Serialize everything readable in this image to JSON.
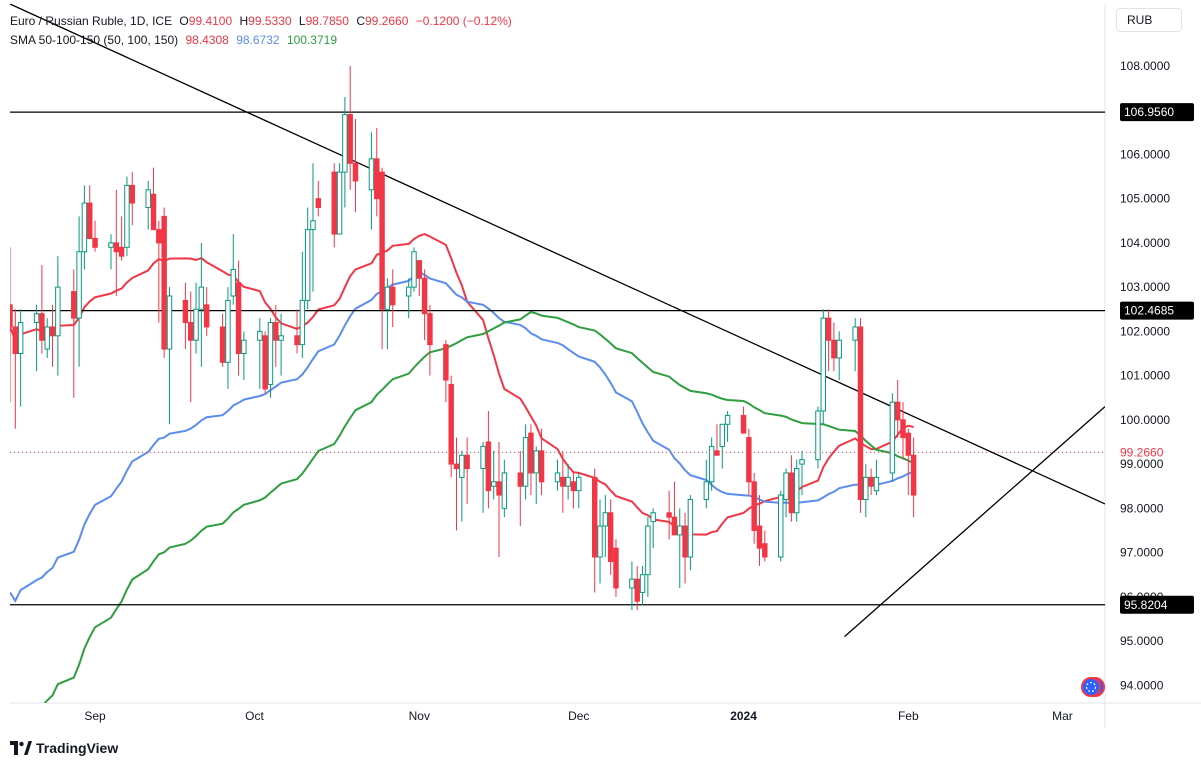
{
  "header": {
    "symbol": "Euro / Russian Ruble, 1D, ICE",
    "open_label": "O",
    "open": "99.4100",
    "high_label": "H",
    "high": "99.5330",
    "low_label": "L",
    "low": "98.7850",
    "close_label": "C",
    "close": "99.2660",
    "change": "−0.1200 (−0.12%)",
    "sma_label": "SMA 50-100-150 (50, 100, 150)",
    "sma50": "98.4308",
    "sma100": "98.6732",
    "sma150": "100.3719"
  },
  "currency": "RUB",
  "branding": "TradingView",
  "colors": {
    "up": "#089981",
    "down": "#f23645",
    "sma50": "#f23645",
    "sma100": "#5b8def",
    "sma150": "#2e9e3f",
    "lines": "#000000",
    "price_line": "#f23645"
  },
  "chart_data": {
    "type": "candlestick",
    "y_range": [
      93.6,
      109.4
    ],
    "y_ticks": [
      {
        "value": 94,
        "label": "94.0000"
      },
      {
        "value": 95,
        "label": "95.0000"
      },
      {
        "value": 96,
        "label": "96.0000"
      },
      {
        "value": 97,
        "label": "97.0000"
      },
      {
        "value": 98,
        "label": "98.0000"
      },
      {
        "value": 99,
        "label": "99.0000"
      },
      {
        "value": 100,
        "label": "100.0000"
      },
      {
        "value": 101,
        "label": "101.0000"
      },
      {
        "value": 102,
        "label": "102.0000"
      },
      {
        "value": 103,
        "label": "103.0000"
      },
      {
        "value": 104,
        "label": "104.0000"
      },
      {
        "value": 105,
        "label": "105.0000"
      },
      {
        "value": 106,
        "label": "106.0000"
      },
      {
        "value": 107,
        "label": "107.0000"
      },
      {
        "value": 108,
        "label": "108.0000"
      }
    ],
    "x_ticks": [
      {
        "date": "2023-09-01",
        "label": "Sep"
      },
      {
        "date": "2023-10-01",
        "label": "Oct"
      },
      {
        "date": "2023-11-01",
        "label": "Nov"
      },
      {
        "date": "2023-12-01",
        "label": "Dec"
      },
      {
        "date": "2024-01-01",
        "label": "2024"
      },
      {
        "date": "2024-02-01",
        "label": "Feb"
      },
      {
        "date": "2024-03-01",
        "label": "Mar"
      }
    ],
    "date_range": [
      "2023-08-16",
      "2024-03-09"
    ],
    "horizontal_levels": [
      {
        "value": 106.956,
        "label": "106.9560"
      },
      {
        "value": 102.4685,
        "label": "102.4685"
      },
      {
        "value": 95.8204,
        "label": "95.8204"
      }
    ],
    "current_price": {
      "value": 99.266,
      "label": "99.2660"
    },
    "trendlines": [
      {
        "from": [
          "2023-08-16",
          109.4
        ],
        "to": [
          "2024-03-09",
          98.1
        ]
      },
      {
        "from": [
          "2024-01-20",
          95.1
        ],
        "to": [
          "2024-03-09",
          100.3
        ]
      }
    ],
    "candles": [
      {
        "date": "2023-08-16",
        "o": 102.6,
        "h": 103.9,
        "l": 100.4,
        "c": 102.1
      },
      {
        "date": "2023-08-17",
        "o": 102.1,
        "h": 102.5,
        "l": 99.8,
        "c": 101.5
      },
      {
        "date": "2023-08-18",
        "o": 101.5,
        "h": 102.5,
        "l": 100.3,
        "c": 102.2
      },
      {
        "date": "2023-08-21",
        "o": 102.2,
        "h": 102.6,
        "l": 101.1,
        "c": 102.4
      },
      {
        "date": "2023-08-22",
        "o": 102.4,
        "h": 103.5,
        "l": 101.5,
        "c": 101.8
      },
      {
        "date": "2023-08-23",
        "o": 101.6,
        "h": 102.3,
        "l": 101.4,
        "c": 102.1
      },
      {
        "date": "2023-08-24",
        "o": 102.1,
        "h": 102.6,
        "l": 101.2,
        "c": 101.9
      },
      {
        "date": "2023-08-25",
        "o": 101.9,
        "h": 103.7,
        "l": 101.0,
        "c": 103.0
      },
      {
        "date": "2023-08-28",
        "o": 102.9,
        "h": 103.4,
        "l": 100.5,
        "c": 102.3
      },
      {
        "date": "2023-08-29",
        "o": 102.3,
        "h": 104.6,
        "l": 101.2,
        "c": 103.8
      },
      {
        "date": "2023-08-30",
        "o": 103.8,
        "h": 105.3,
        "l": 103.4,
        "c": 104.9
      },
      {
        "date": "2023-08-31",
        "o": 104.9,
        "h": 105.3,
        "l": 104.2,
        "c": 104.1
      },
      {
        "date": "2023-09-01",
        "o": 104.1,
        "h": 104.5,
        "l": 103.8,
        "c": 103.9
      },
      {
        "date": "2023-09-04",
        "o": 103.9,
        "h": 104.2,
        "l": 103.4,
        "c": 104.0
      },
      {
        "date": "2023-09-05",
        "o": 104.0,
        "h": 105.2,
        "l": 102.8,
        "c": 103.8
      },
      {
        "date": "2023-09-06",
        "o": 103.9,
        "h": 104.6,
        "l": 103.6,
        "c": 103.7
      },
      {
        "date": "2023-09-07",
        "o": 103.9,
        "h": 105.5,
        "l": 103.7,
        "c": 105.3
      },
      {
        "date": "2023-09-08",
        "o": 105.3,
        "h": 105.6,
        "l": 104.4,
        "c": 104.9
      },
      {
        "date": "2023-09-11",
        "o": 104.8,
        "h": 105.4,
        "l": 104.3,
        "c": 105.2
      },
      {
        "date": "2023-09-12",
        "o": 105.1,
        "h": 105.7,
        "l": 104.3,
        "c": 104.3
      },
      {
        "date": "2023-09-13",
        "o": 104.3,
        "h": 104.5,
        "l": 102.2,
        "c": 104.0
      },
      {
        "date": "2023-09-14",
        "o": 104.6,
        "h": 104.8,
        "l": 101.4,
        "c": 101.6
      },
      {
        "date": "2023-09-15",
        "o": 101.6,
        "h": 103.0,
        "l": 99.9,
        "c": 102.8
      },
      {
        "date": "2023-09-18",
        "o": 102.7,
        "h": 103.1,
        "l": 101.6,
        "c": 102.2
      },
      {
        "date": "2023-09-19",
        "o": 102.2,
        "h": 102.9,
        "l": 100.4,
        "c": 101.8
      },
      {
        "date": "2023-09-20",
        "o": 101.8,
        "h": 103.1,
        "l": 101.5,
        "c": 102.5
      },
      {
        "date": "2023-09-21",
        "o": 102.5,
        "h": 104.0,
        "l": 101.2,
        "c": 103.0
      },
      {
        "date": "2023-09-22",
        "o": 102.6,
        "h": 103.0,
        "l": 101.9,
        "c": 102.1
      },
      {
        "date": "2023-09-25",
        "o": 102.1,
        "h": 102.4,
        "l": 101.2,
        "c": 101.3
      },
      {
        "date": "2023-09-26",
        "o": 101.3,
        "h": 103.0,
        "l": 100.7,
        "c": 102.7
      },
      {
        "date": "2023-09-27",
        "o": 102.8,
        "h": 104.2,
        "l": 102.6,
        "c": 103.4
      },
      {
        "date": "2023-09-28",
        "o": 103.1,
        "h": 103.6,
        "l": 101.0,
        "c": 101.5
      },
      {
        "date": "2023-09-29",
        "o": 101.5,
        "h": 102.0,
        "l": 100.9,
        "c": 101.8
      },
      {
        "date": "2023-10-02",
        "o": 101.8,
        "h": 102.3,
        "l": 100.7,
        "c": 102.0
      },
      {
        "date": "2023-10-03",
        "o": 101.9,
        "h": 102.0,
        "l": 100.6,
        "c": 100.7
      },
      {
        "date": "2023-10-04",
        "o": 100.8,
        "h": 102.3,
        "l": 100.5,
        "c": 102.2
      },
      {
        "date": "2023-10-05",
        "o": 102.2,
        "h": 102.6,
        "l": 101.2,
        "c": 101.8
      },
      {
        "date": "2023-10-06",
        "o": 101.8,
        "h": 102.4,
        "l": 101.0,
        "c": 101.9
      },
      {
        "date": "2023-10-09",
        "o": 101.9,
        "h": 102.5,
        "l": 101.5,
        "c": 101.7
      },
      {
        "date": "2023-10-10",
        "o": 101.7,
        "h": 103.8,
        "l": 101.4,
        "c": 102.7
      },
      {
        "date": "2023-10-11",
        "o": 102.7,
        "h": 104.8,
        "l": 102.5,
        "c": 104.3
      },
      {
        "date": "2023-10-12",
        "o": 104.3,
        "h": 105.8,
        "l": 102.9,
        "c": 104.5
      },
      {
        "date": "2023-10-13",
        "o": 105.0,
        "h": 105.4,
        "l": 104.6,
        "c": 104.8
      },
      {
        "date": "2023-10-16",
        "o": 105.6,
        "h": 105.8,
        "l": 103.9,
        "c": 104.2
      },
      {
        "date": "2023-10-17",
        "o": 104.2,
        "h": 105.8,
        "l": 104.2,
        "c": 105.6
      },
      {
        "date": "2023-10-18",
        "o": 105.6,
        "h": 107.3,
        "l": 104.8,
        "c": 106.9
      },
      {
        "date": "2023-10-19",
        "o": 106.9,
        "h": 108.0,
        "l": 105.2,
        "c": 105.8
      },
      {
        "date": "2023-10-20",
        "o": 105.8,
        "h": 106.8,
        "l": 104.7,
        "c": 105.4
      },
      {
        "date": "2023-10-23",
        "o": 105.2,
        "h": 106.5,
        "l": 104.3,
        "c": 105.9
      },
      {
        "date": "2023-10-24",
        "o": 105.9,
        "h": 106.6,
        "l": 104.6,
        "c": 105.0
      },
      {
        "date": "2023-10-25",
        "o": 105.6,
        "h": 105.7,
        "l": 101.6,
        "c": 102.5
      },
      {
        "date": "2023-10-26",
        "o": 102.5,
        "h": 103.2,
        "l": 101.6,
        "c": 103.0
      },
      {
        "date": "2023-10-27",
        "o": 103.0,
        "h": 103.4,
        "l": 102.1,
        "c": 102.6
      },
      {
        "date": "2023-10-30",
        "o": 102.8,
        "h": 103.2,
        "l": 102.3,
        "c": 103.0
      },
      {
        "date": "2023-10-31",
        "o": 103.0,
        "h": 103.9,
        "l": 102.9,
        "c": 103.8
      },
      {
        "date": "2023-11-01",
        "o": 103.6,
        "h": 103.6,
        "l": 102.8,
        "c": 103.2
      },
      {
        "date": "2023-11-02",
        "o": 103.2,
        "h": 103.4,
        "l": 101.8,
        "c": 102.4
      },
      {
        "date": "2023-11-03",
        "o": 102.4,
        "h": 102.6,
        "l": 101.0,
        "c": 101.7
      },
      {
        "date": "2023-11-06",
        "o": 101.7,
        "h": 101.8,
        "l": 100.4,
        "c": 100.9
      },
      {
        "date": "2023-11-07",
        "o": 100.8,
        "h": 101.0,
        "l": 98.7,
        "c": 99.0
      },
      {
        "date": "2023-11-08",
        "o": 99.0,
        "h": 99.6,
        "l": 97.5,
        "c": 98.9
      },
      {
        "date": "2023-11-09",
        "o": 98.7,
        "h": 99.3,
        "l": 97.7,
        "c": 99.2
      },
      {
        "date": "2023-11-10",
        "o": 99.2,
        "h": 99.6,
        "l": 98.1,
        "c": 98.9
      },
      {
        "date": "2023-11-13",
        "o": 98.9,
        "h": 99.5,
        "l": 97.9,
        "c": 99.4
      },
      {
        "date": "2023-11-14",
        "o": 99.5,
        "h": 100.2,
        "l": 98.0,
        "c": 98.4
      },
      {
        "date": "2023-11-15",
        "o": 98.5,
        "h": 99.3,
        "l": 98.2,
        "c": 98.6
      },
      {
        "date": "2023-11-16",
        "o": 98.6,
        "h": 99.5,
        "l": 96.9,
        "c": 98.3
      },
      {
        "date": "2023-11-17",
        "o": 98.0,
        "h": 99.1,
        "l": 97.8,
        "c": 98.8
      },
      {
        "date": "2023-11-20",
        "o": 98.8,
        "h": 99.3,
        "l": 97.6,
        "c": 98.5
      },
      {
        "date": "2023-11-21",
        "o": 98.5,
        "h": 99.9,
        "l": 98.2,
        "c": 99.6
      },
      {
        "date": "2023-11-22",
        "o": 99.7,
        "h": 99.9,
        "l": 98.3,
        "c": 98.8
      },
      {
        "date": "2023-11-23",
        "o": 98.8,
        "h": 99.4,
        "l": 98.1,
        "c": 99.3
      },
      {
        "date": "2023-11-24",
        "o": 99.3,
        "h": 99.8,
        "l": 98.3,
        "c": 98.6
      },
      {
        "date": "2023-11-27",
        "o": 98.6,
        "h": 99.1,
        "l": 98.4,
        "c": 98.8
      },
      {
        "date": "2023-11-28",
        "o": 98.7,
        "h": 99.3,
        "l": 97.9,
        "c": 98.5
      },
      {
        "date": "2023-11-29",
        "o": 98.5,
        "h": 99.0,
        "l": 98.2,
        "c": 98.7
      },
      {
        "date": "2023-11-30",
        "o": 98.6,
        "h": 98.8,
        "l": 98.0,
        "c": 98.4
      },
      {
        "date": "2023-12-01",
        "o": 98.4,
        "h": 98.8,
        "l": 98.0,
        "c": 98.7
      },
      {
        "date": "2023-12-04",
        "o": 98.7,
        "h": 98.9,
        "l": 96.1,
        "c": 96.9
      },
      {
        "date": "2023-12-05",
        "o": 96.9,
        "h": 98.2,
        "l": 96.3,
        "c": 97.6
      },
      {
        "date": "2023-12-06",
        "o": 97.6,
        "h": 98.3,
        "l": 96.9,
        "c": 97.9
      },
      {
        "date": "2023-12-07",
        "o": 97.9,
        "h": 98.2,
        "l": 96.5,
        "c": 96.8
      },
      {
        "date": "2023-12-08",
        "o": 97.1,
        "h": 97.3,
        "l": 96.0,
        "c": 96.2
      },
      {
        "date": "2023-12-11",
        "o": 96.2,
        "h": 96.8,
        "l": 95.7,
        "c": 96.4
      },
      {
        "date": "2023-12-12",
        "o": 96.4,
        "h": 96.7,
        "l": 95.7,
        "c": 95.9
      },
      {
        "date": "2023-12-13",
        "o": 96.1,
        "h": 96.7,
        "l": 95.8,
        "c": 96.5
      },
      {
        "date": "2023-12-14",
        "o": 96.5,
        "h": 97.8,
        "l": 96.0,
        "c": 97.6
      },
      {
        "date": "2023-12-15",
        "o": 97.7,
        "h": 98.0,
        "l": 97.1,
        "c": 97.9
      },
      {
        "date": "2023-12-18",
        "o": 97.9,
        "h": 98.4,
        "l": 97.3,
        "c": 97.8
      },
      {
        "date": "2023-12-19",
        "o": 97.8,
        "h": 98.6,
        "l": 97.4,
        "c": 97.4
      },
      {
        "date": "2023-12-20",
        "o": 97.4,
        "h": 98.0,
        "l": 96.2,
        "c": 97.6
      },
      {
        "date": "2023-12-21",
        "o": 97.6,
        "h": 97.9,
        "l": 96.3,
        "c": 96.9
      },
      {
        "date": "2023-12-22",
        "o": 96.9,
        "h": 98.3,
        "l": 96.6,
        "c": 98.2
      },
      {
        "date": "2023-12-25",
        "o": 98.2,
        "h": 99.1,
        "l": 98.0,
        "c": 98.6
      },
      {
        "date": "2023-12-26",
        "o": 98.6,
        "h": 99.6,
        "l": 98.4,
        "c": 99.4
      },
      {
        "date": "2023-12-27",
        "o": 99.3,
        "h": 99.9,
        "l": 99.2,
        "c": 99.2
      },
      {
        "date": "2023-12-28",
        "o": 99.4,
        "h": 99.9,
        "l": 98.9,
        "c": 99.9
      },
      {
        "date": "2023-12-29",
        "o": 99.9,
        "h": 100.2,
        "l": 99.5,
        "c": 100.1
      },
      {
        "date": "2024-01-01",
        "o": 100.1,
        "h": 100.3,
        "l": 99.8,
        "c": 99.7
      },
      {
        "date": "2024-01-02",
        "o": 99.6,
        "h": 99.8,
        "l": 98.3,
        "c": 98.6
      },
      {
        "date": "2024-01-03",
        "o": 98.6,
        "h": 98.8,
        "l": 97.2,
        "c": 97.5
      },
      {
        "date": "2024-01-04",
        "o": 97.6,
        "h": 98.3,
        "l": 96.7,
        "c": 97.1
      },
      {
        "date": "2024-01-05",
        "o": 97.2,
        "h": 97.5,
        "l": 96.8,
        "c": 96.9
      },
      {
        "date": "2024-01-08",
        "o": 96.9,
        "h": 98.4,
        "l": 96.8,
        "c": 98.3
      },
      {
        "date": "2024-01-09",
        "o": 98.2,
        "h": 98.9,
        "l": 97.8,
        "c": 98.8
      },
      {
        "date": "2024-01-10",
        "o": 98.8,
        "h": 99.2,
        "l": 97.7,
        "c": 97.9
      },
      {
        "date": "2024-01-11",
        "o": 97.9,
        "h": 99.1,
        "l": 97.7,
        "c": 98.9
      },
      {
        "date": "2024-01-12",
        "o": 99.0,
        "h": 99.3,
        "l": 98.3,
        "c": 99.1
      },
      {
        "date": "2024-01-15",
        "o": 99.1,
        "h": 100.3,
        "l": 98.9,
        "c": 100.2
      },
      {
        "date": "2024-01-16",
        "o": 100.2,
        "h": 102.5,
        "l": 99.9,
        "c": 102.3
      },
      {
        "date": "2024-01-17",
        "o": 102.3,
        "h": 102.5,
        "l": 101.1,
        "c": 101.8
      },
      {
        "date": "2024-01-18",
        "o": 101.8,
        "h": 102.2,
        "l": 101.1,
        "c": 101.4
      },
      {
        "date": "2024-01-19",
        "o": 101.4,
        "h": 102.0,
        "l": 100.9,
        "c": 101.8
      },
      {
        "date": "2024-01-22",
        "o": 101.8,
        "h": 102.3,
        "l": 101.1,
        "c": 102.1
      },
      {
        "date": "2024-01-23",
        "o": 102.1,
        "h": 102.3,
        "l": 97.9,
        "c": 98.2
      },
      {
        "date": "2024-01-24",
        "o": 98.2,
        "h": 99.0,
        "l": 97.8,
        "c": 98.7
      },
      {
        "date": "2024-01-25",
        "o": 98.7,
        "h": 98.9,
        "l": 98.3,
        "c": 98.5
      },
      {
        "date": "2024-01-26",
        "o": 98.4,
        "h": 99.1,
        "l": 98.3,
        "c": 98.7
      },
      {
        "date": "2024-01-29",
        "o": 98.8,
        "h": 100.6,
        "l": 98.6,
        "c": 100.4
      },
      {
        "date": "2024-01-30",
        "o": 100.4,
        "h": 100.9,
        "l": 99.6,
        "c": 100.0
      },
      {
        "date": "2024-01-31",
        "o": 100.0,
        "h": 100.4,
        "l": 99.1,
        "c": 99.6
      },
      {
        "date": "2024-02-01",
        "o": 99.7,
        "h": 99.8,
        "l": 98.3,
        "c": 99.2
      },
      {
        "date": "2024-02-02",
        "o": 99.2,
        "h": 99.6,
        "l": 97.8,
        "c": 98.3
      }
    ]
  }
}
